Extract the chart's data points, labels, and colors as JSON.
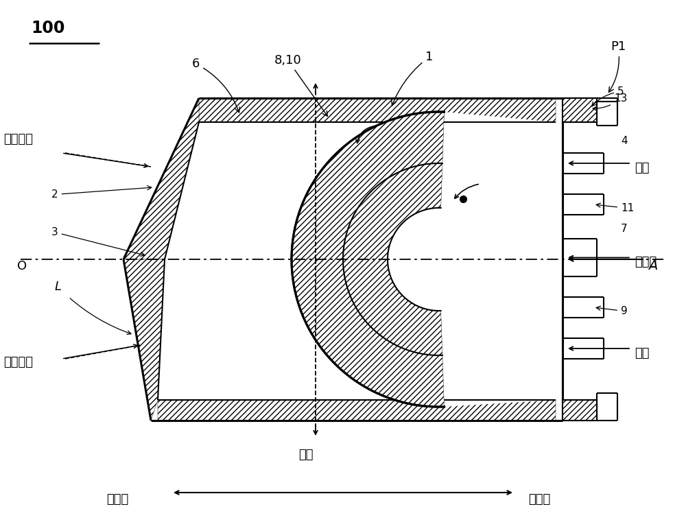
{
  "bg_color": "#ffffff",
  "line_color": "#000000",
  "label_100": "100",
  "label_P1": "P1",
  "label_1": "1",
  "label_2": "2",
  "label_3": "3",
  "label_4": "4",
  "label_5": "5",
  "label_6": "6",
  "label_7": "7",
  "label_8_10": "8,10",
  "label_9": "9",
  "label_11": "11",
  "label_13": "13",
  "label_A": "A",
  "label_O": "O",
  "label_L": "L",
  "label_jingxiang": "径向",
  "label_hunhe_top": "混合流体",
  "label_hunhe_bot": "混合流体",
  "label_zhengqi_top": "蒸汽",
  "label_zhengqi_bot": "蒸汽",
  "label_ranliao": "燃料油",
  "label_furnace_inner": "炉内侧",
  "label_furnace_outer": "炉外侧",
  "fs": 13,
  "fs_s": 11,
  "fs_title": 17
}
